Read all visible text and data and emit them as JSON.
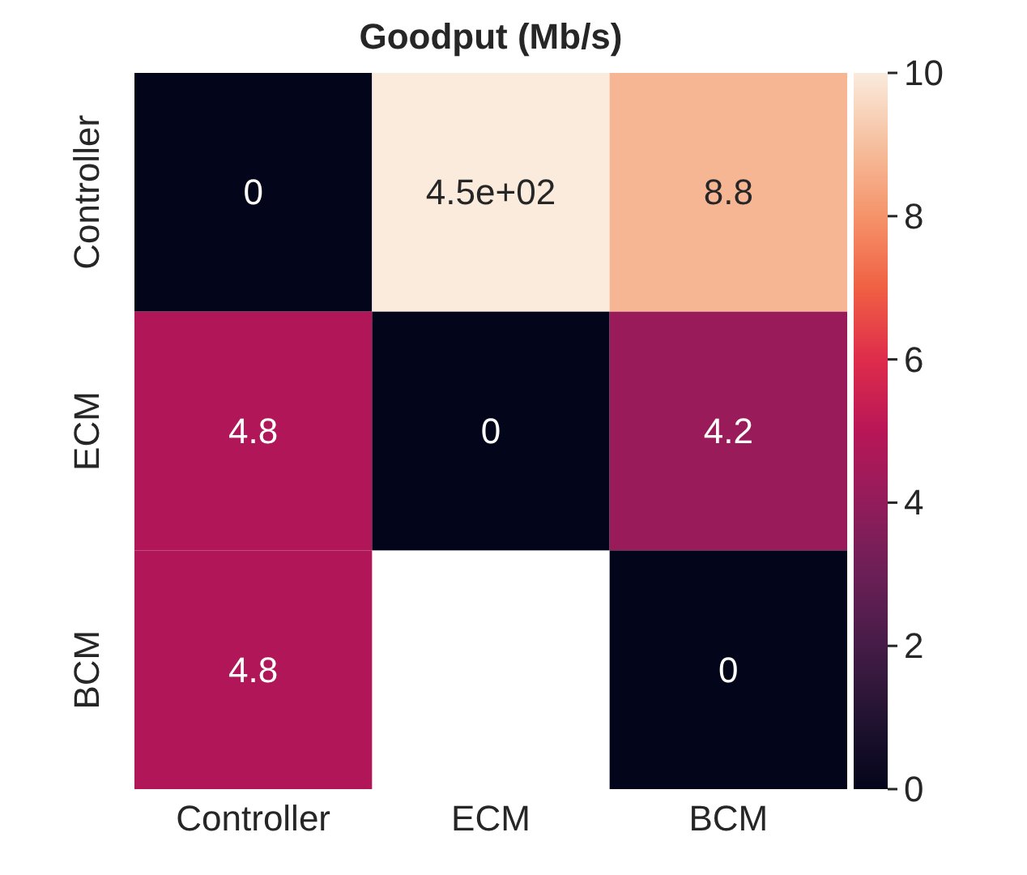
{
  "chart_data": {
    "type": "heatmap",
    "title": "Goodput (Mb/s)",
    "categories": [
      "Controller",
      "ECM",
      "BCM"
    ],
    "y_categories": [
      "Controller",
      "ECM",
      "BCM"
    ],
    "cells": [
      [
        0,
        450,
        8.8
      ],
      [
        4.8,
        0,
        4.2
      ],
      [
        4.8,
        null,
        0
      ]
    ],
    "cell_labels": [
      [
        "0",
        "4.5e+02",
        "8.8"
      ],
      [
        "4.8",
        "0",
        "4.2"
      ],
      [
        "4.8",
        null,
        "0"
      ]
    ],
    "clim": [
      0,
      10
    ],
    "cticks": [
      0,
      2,
      4,
      6,
      8,
      10
    ]
  }
}
